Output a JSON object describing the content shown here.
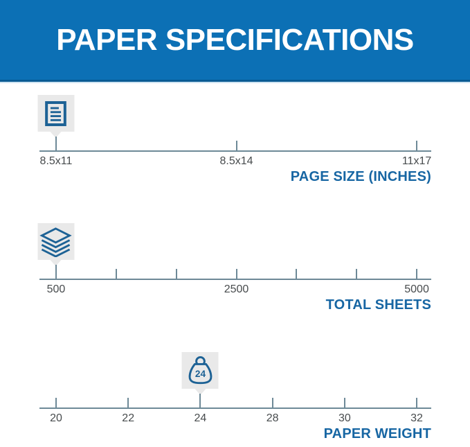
{
  "header": {
    "title": "PAPER SPECIFICATIONS"
  },
  "colors": {
    "banner_blue": "#0c70b5",
    "banner_border": "#0a5b93",
    "accent_blue": "#1766a3",
    "icon_blue": "#1d6295",
    "line_gray": "#6d8997",
    "label_gray": "#474b4d",
    "badge_gray": "#e9e9e9"
  },
  "scales": [
    {
      "id": "page-size",
      "title": "PAGE SIZE (INCHES)",
      "icon": "document-icon",
      "selected": "8.5x11",
      "selected_pos": 4.24,
      "ticks": [
        {
          "label": "8.5x11",
          "pos": 4.24
        },
        {
          "label": "8.5x14",
          "pos": 50.27
        },
        {
          "label": "11x17",
          "pos": 96.3
        }
      ]
    },
    {
      "id": "total-sheets",
      "title": "TOTAL SHEETS",
      "icon": "paper-stack-icon",
      "selected": "500",
      "selected_pos": 4.24,
      "ticks": [
        {
          "label": "500",
          "pos": 4.24
        },
        {
          "label": "",
          "pos": 19.58
        },
        {
          "label": "",
          "pos": 34.93
        },
        {
          "label": "2500",
          "pos": 50.27
        },
        {
          "label": "",
          "pos": 65.61
        },
        {
          "label": "",
          "pos": 80.96
        },
        {
          "label": "5000",
          "pos": 96.3
        }
      ]
    },
    {
      "id": "paper-weight",
      "title": "PAPER WEIGHT",
      "icon": "weight-icon",
      "icon_label": "24",
      "selected": "24",
      "selected_pos": 41.06,
      "ticks": [
        {
          "label": "20",
          "pos": 4.24
        },
        {
          "label": "22",
          "pos": 22.65
        },
        {
          "label": "24",
          "pos": 41.06
        },
        {
          "label": "28",
          "pos": 59.47
        },
        {
          "label": "30",
          "pos": 77.89
        },
        {
          "label": "32",
          "pos": 96.3
        }
      ]
    }
  ]
}
